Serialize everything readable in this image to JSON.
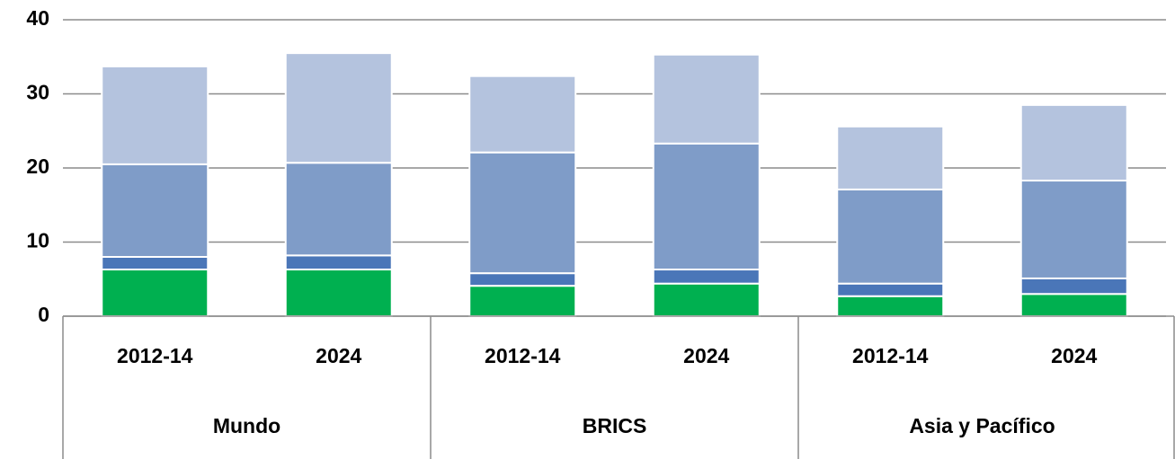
{
  "chart_data": {
    "type": "stacked_bar",
    "groups": [
      {
        "name": "Mundo",
        "categories": [
          "2012-14",
          "2024"
        ]
      },
      {
        "name": "BRICS",
        "categories": [
          "2012-14",
          "2024"
        ]
      },
      {
        "name": "Asia y Pacífico",
        "categories": [
          "2012-14",
          "2024"
        ]
      }
    ],
    "series": [
      {
        "color": "#00b050",
        "values": [
          6.3,
          6.3,
          4.1,
          4.4,
          2.7,
          3.0
        ]
      },
      {
        "color": "#4a76b8",
        "values": [
          1.7,
          1.9,
          1.7,
          1.9,
          1.7,
          2.1
        ]
      },
      {
        "color": "#7f9cc8",
        "values": [
          12.5,
          12.5,
          16.3,
          17.0,
          12.7,
          13.2
        ]
      },
      {
        "color": "#b4c3de",
        "values": [
          13.2,
          14.8,
          10.3,
          12.0,
          8.5,
          10.2
        ]
      }
    ],
    "ylim": [
      0,
      40
    ],
    "yticks": [
      0,
      10,
      20,
      30,
      40
    ],
    "grid": true
  }
}
